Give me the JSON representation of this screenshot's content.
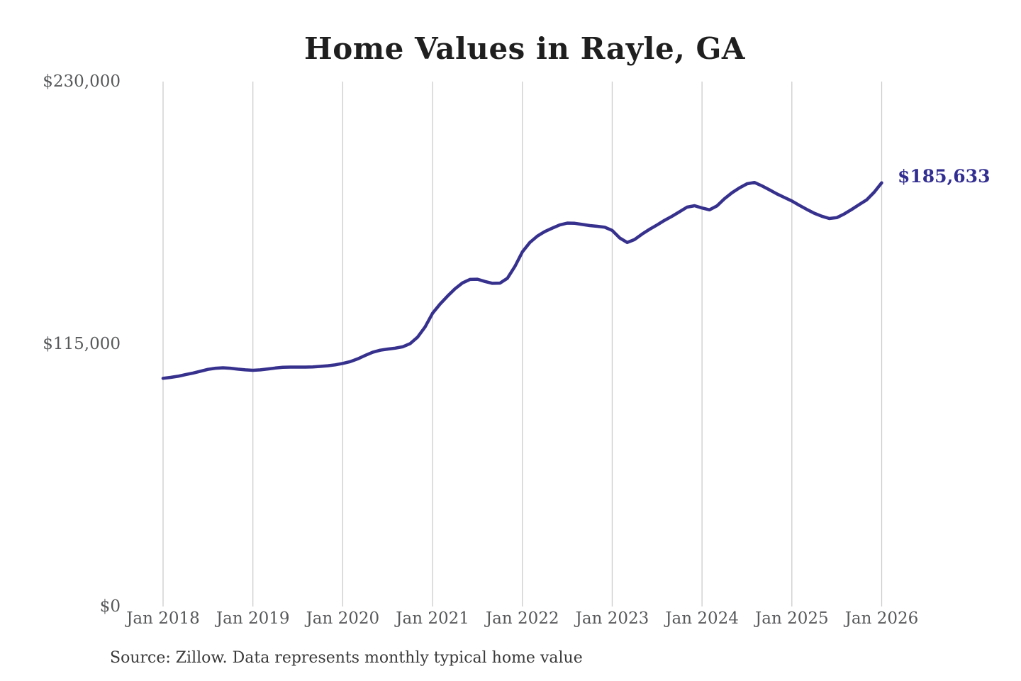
{
  "title": "Home Values in Rayle, GA",
  "annotation": {
    "last_value_label": "$185,633"
  },
  "source_note": "Source: Zillow. Data represents monthly typical home value",
  "colors": {
    "line": "#37318e",
    "annotation": "#322e91",
    "gridline": "#cccccc",
    "axis_label": "#58595b",
    "title": "#1f1f1f",
    "source": "#3a3a3a",
    "background": "#ffffff"
  },
  "chart_data": {
    "type": "line",
    "title": "Home Values in Rayle, GA",
    "xlabel": "",
    "ylabel": "",
    "ylim": [
      0,
      230000
    ],
    "y_ticks": [
      0,
      115000,
      230000
    ],
    "y_tick_labels": [
      "$0",
      "$115,000",
      "$230,000"
    ],
    "x_tick_labels": [
      "Jan 2018",
      "Jan 2019",
      "Jan 2020",
      "Jan 2021",
      "Jan 2022",
      "Jan 2023",
      "Jan 2024",
      "Jan 2025",
      "Jan 2026"
    ],
    "x_tick_month_indices": [
      0,
      12,
      24,
      36,
      48,
      60,
      72,
      84,
      96
    ],
    "frequency": "monthly",
    "grid": "vertical-year-lines-only",
    "legend": "none",
    "last_point_label": "$185,633",
    "series": [
      {
        "name": "Typical home value",
        "start": "Jan 2018",
        "end": "Jan 2026",
        "values": [
          100000,
          100400,
          100900,
          101600,
          102300,
          103100,
          103900,
          104400,
          104600,
          104400,
          104000,
          103700,
          103500,
          103700,
          104100,
          104500,
          104800,
          104900,
          104900,
          104900,
          105000,
          105200,
          105500,
          105900,
          106500,
          107300,
          108500,
          110000,
          111400,
          112300,
          112800,
          113200,
          113800,
          115200,
          118000,
          122500,
          128500,
          132500,
          136000,
          139200,
          141800,
          143300,
          143400,
          142400,
          141600,
          141700,
          143800,
          149000,
          155400,
          159500,
          162300,
          164300,
          165800,
          167200,
          168000,
          167900,
          167400,
          166900,
          166600,
          166200,
          164800,
          161500,
          159500,
          160800,
          163200,
          165300,
          167200,
          169200,
          171000,
          173000,
          175000,
          175600,
          174600,
          173800,
          175500,
          178700,
          181300,
          183400,
          185200,
          185800,
          184300,
          182600,
          180800,
          179200,
          177700,
          175800,
          174000,
          172300,
          171000,
          170000,
          170400,
          172000,
          174000,
          176100,
          178200,
          181500,
          185633
        ]
      }
    ]
  }
}
